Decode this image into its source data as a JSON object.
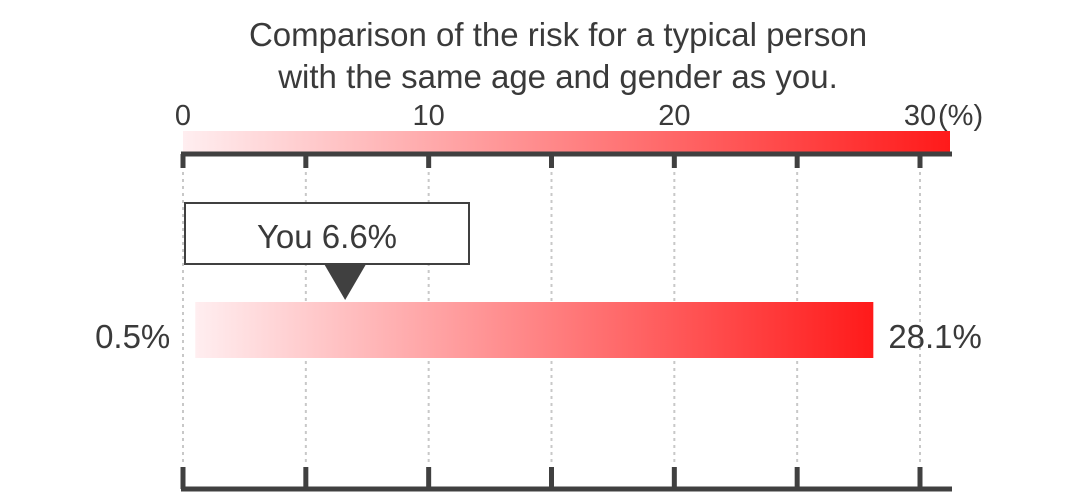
{
  "chart_data": {
    "type": "bar",
    "title_lines": [
      "Comparison of the risk for a typical person",
      "with the same age and gender as you."
    ],
    "axis": {
      "min": 0,
      "max": 30,
      "ticks": [
        {
          "value": 0,
          "label": "0"
        },
        {
          "value": 10,
          "label": "10"
        },
        {
          "value": 20,
          "label": "20"
        },
        {
          "value": 30,
          "label": "30"
        }
      ],
      "unit": "(%)",
      "minor_step": 5,
      "grid": true
    },
    "range": {
      "low": 0.5,
      "high": 28.1,
      "low_label": "0.5%",
      "high_label": "28.1%"
    },
    "marker": {
      "value": 6.6,
      "label": "You 6.6%"
    },
    "colors": {
      "gradient_start": "#ffeef0",
      "gradient_end": "#ff1a1a",
      "axis": "#404040",
      "grid": "#c8c8c8",
      "text": "#3a3a3a",
      "marker": "#404040"
    }
  }
}
